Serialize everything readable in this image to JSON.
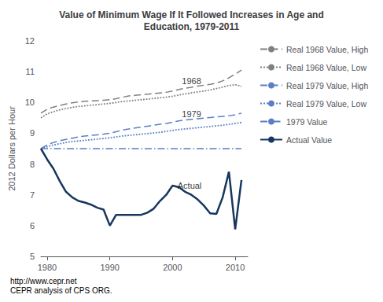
{
  "chart_data": {
    "type": "line",
    "title": "Value of Minimum Wage If It Followed Increases in Age and\nEducation, 1979-2011",
    "ylabel": "2012 Dollars per Hour",
    "footer": "http://www.cepr.net\nCEPR analysis of CPS ORG.",
    "xlim": [
      1979,
      2012
    ],
    "xticks": [
      1980,
      1990,
      2000,
      2010
    ],
    "ylim": [
      5,
      12
    ],
    "yticks": [
      5,
      6,
      7,
      8,
      9,
      10,
      11,
      12
    ],
    "grid": false,
    "legend": "right",
    "x": [
      1979,
      1980,
      1981,
      1982,
      1983,
      1984,
      1985,
      1986,
      1987,
      1988,
      1989,
      1990,
      1991,
      1992,
      1993,
      1994,
      1995,
      1996,
      1997,
      1998,
      1999,
      2000,
      2001,
      2002,
      2003,
      2004,
      2005,
      2006,
      2007,
      2008,
      2009,
      2010,
      2011
    ],
    "series": [
      {
        "name": "Real 1968 Value, High",
        "color": "#808080",
        "line_style": "dashed",
        "values": [
          9.65,
          9.78,
          9.85,
          9.9,
          9.95,
          9.99,
          10.02,
          10.04,
          10.05,
          10.06,
          10.07,
          10.09,
          10.12,
          10.17,
          10.21,
          10.23,
          10.25,
          10.27,
          10.29,
          10.31,
          10.33,
          10.37,
          10.42,
          10.46,
          10.49,
          10.53,
          10.56,
          10.59,
          10.63,
          10.7,
          10.8,
          10.92,
          11.05
        ]
      },
      {
        "name": "Real 1968 Value, Low",
        "color": "#808080",
        "line_style": "dotted",
        "values": [
          9.5,
          9.63,
          9.7,
          9.76,
          9.8,
          9.84,
          9.87,
          9.89,
          9.91,
          9.93,
          9.95,
          9.97,
          10.0,
          10.03,
          10.05,
          10.07,
          10.09,
          10.11,
          10.13,
          10.15,
          10.17,
          10.2,
          10.24,
          10.28,
          10.31,
          10.34,
          10.37,
          10.41,
          10.45,
          10.5,
          10.55,
          10.58,
          10.52
        ]
      },
      {
        "name": "Real 1979 Value, High",
        "color": "#5B7FC5",
        "line_style": "dashed",
        "values": [
          8.5,
          8.62,
          8.7,
          8.76,
          8.8,
          8.84,
          8.88,
          8.91,
          8.93,
          8.95,
          8.97,
          9.0,
          9.05,
          9.1,
          9.14,
          9.17,
          9.2,
          9.23,
          9.26,
          9.29,
          9.32,
          9.36,
          9.4,
          9.43,
          9.45,
          9.47,
          9.49,
          9.51,
          9.53,
          9.55,
          9.57,
          9.6,
          9.65
        ]
      },
      {
        "name": "Real 1979 Value, Low",
        "color": "#5B7FC5",
        "line_style": "dotted",
        "values": [
          8.5,
          8.56,
          8.62,
          8.66,
          8.7,
          8.73,
          8.75,
          8.77,
          8.79,
          8.81,
          8.83,
          8.85,
          8.88,
          8.91,
          8.93,
          8.95,
          8.97,
          8.99,
          9.01,
          9.03,
          9.06,
          9.09,
          9.12,
          9.14,
          9.16,
          9.18,
          9.2,
          9.22,
          9.24,
          9.26,
          9.29,
          9.32,
          9.35
        ]
      },
      {
        "name": "1979 Value",
        "color": "#5B7FC5",
        "line_style": "dashdot",
        "values": [
          8.5,
          8.5,
          8.5,
          8.5,
          8.5,
          8.5,
          8.5,
          8.5,
          8.5,
          8.5,
          8.5,
          8.5,
          8.5,
          8.5,
          8.5,
          8.5,
          8.5,
          8.5,
          8.5,
          8.5,
          8.5,
          8.5,
          8.5,
          8.5,
          8.5,
          8.5,
          8.5,
          8.5,
          8.5,
          8.5,
          8.5,
          8.5,
          8.5
        ]
      },
      {
        "name": "Actual Value",
        "color": "#17375E",
        "line_style": "solid",
        "values": [
          8.5,
          8.15,
          7.85,
          7.45,
          7.1,
          6.92,
          6.8,
          6.75,
          6.68,
          6.58,
          6.52,
          6.0,
          6.35,
          6.35,
          6.35,
          6.35,
          6.35,
          6.42,
          6.55,
          6.8,
          7.0,
          7.3,
          7.25,
          7.1,
          7.0,
          6.85,
          6.65,
          6.4,
          6.38,
          6.92,
          7.75,
          5.88,
          7.48
        ]
      }
    ],
    "annotations": [
      {
        "text": "1968",
        "x": 2001.5,
        "y": 10.56
      },
      {
        "text": "1979",
        "x": 2001.5,
        "y": 9.48
      },
      {
        "text": "Actual",
        "x": 2000.8,
        "y": 7.15
      }
    ]
  }
}
